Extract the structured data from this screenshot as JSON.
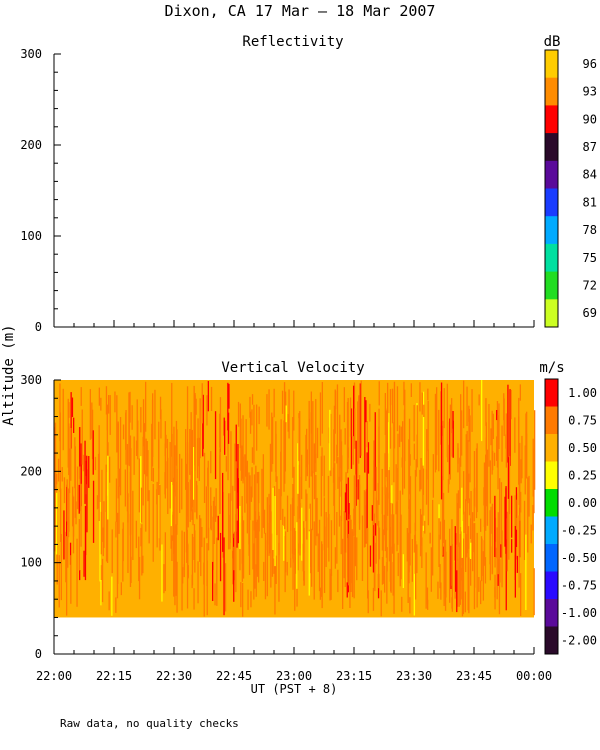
{
  "title": "Dixon, CA 17 Mar — 18 Mar 2007",
  "ylabel": "Altitude (m)",
  "xlabel": "UT  (PST + 8)",
  "footnote": "Raw data, no quality checks",
  "chart_data": [
    {
      "type": "heatmap",
      "title": "Reflectivity",
      "ylim": [
        0,
        300
      ],
      "yticks": [
        0,
        100,
        200,
        300
      ],
      "xlim": [
        "22:00",
        "00:00"
      ],
      "xticks": [
        "22:00",
        "22:15",
        "22:30",
        "22:45",
        "23:00",
        "23:15",
        "23:30",
        "23:45",
        "00:00"
      ],
      "values": [],
      "colorbar": {
        "unit": "dB",
        "labels": [
          "96",
          "93",
          "90",
          "87",
          "84",
          "81",
          "78",
          "75",
          "72",
          "69"
        ],
        "colors": [
          "#ffcc00",
          "#ff8c00",
          "#ff0000",
          "#2a0a2a",
          "#5a0a9a",
          "#1a3cff",
          "#00aaff",
          "#00e0a0",
          "#22dd22",
          "#ccff22"
        ]
      }
    },
    {
      "type": "heatmap",
      "title": "Vertical Velocity",
      "ylim": [
        0,
        300
      ],
      "yticks": [
        0,
        100,
        200,
        300
      ],
      "xlim": [
        "22:00",
        "00:00"
      ],
      "xticks": [
        "22:00",
        "22:15",
        "22:30",
        "22:45",
        "23:00",
        "23:15",
        "23:30",
        "23:45",
        "00:00"
      ],
      "data_altitude_range": [
        40,
        300
      ],
      "value_range": [
        0.25,
        1.0
      ],
      "colorbar": {
        "unit": "m/s",
        "labels": [
          "1.00",
          "0.75",
          "0.50",
          "0.25",
          "0.00",
          "-0.25",
          "-0.50",
          "-0.75",
          "-1.00",
          "-2.00"
        ],
        "colors": [
          "#ff0000",
          "#ff7a00",
          "#ffb000",
          "#ffff00",
          "#00dd00",
          "#00aaff",
          "#0066ff",
          "#2a0aff",
          "#5a0a9a",
          "#2a0a2a"
        ]
      }
    }
  ]
}
